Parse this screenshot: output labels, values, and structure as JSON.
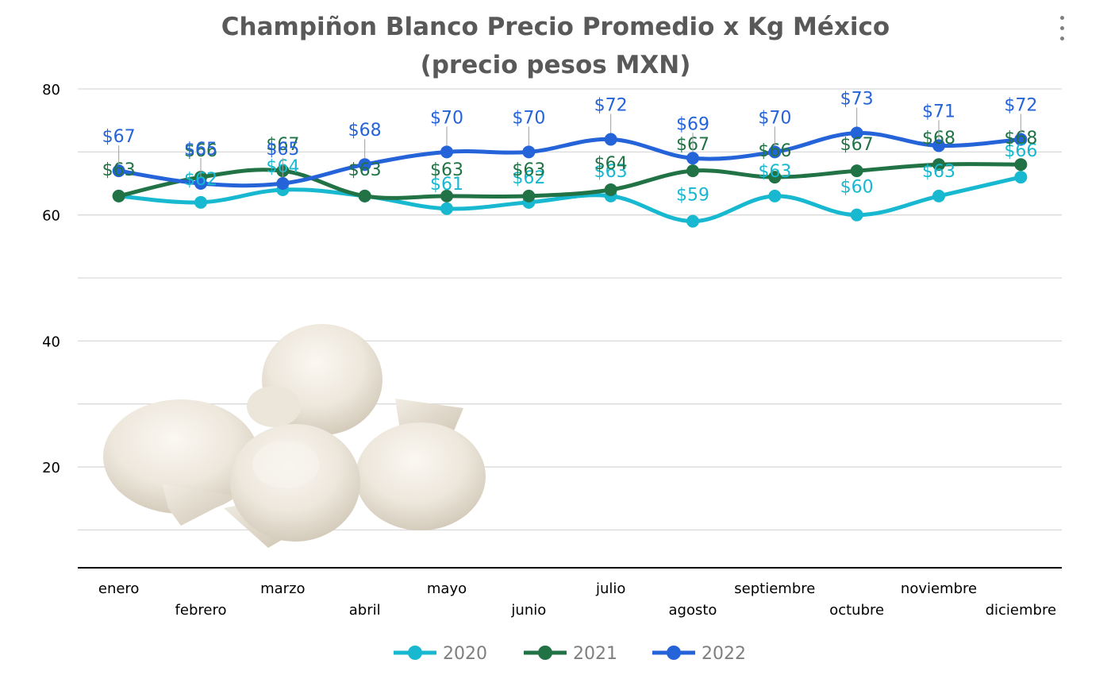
{
  "chart_data": {
    "type": "line",
    "title_line1": "Champiñon Blanco Precio Promedio x Kg México",
    "title_line2": "(precio pesos MXN)",
    "xlabel": "",
    "ylabel": "",
    "ylim": [
      4,
      80
    ],
    "yticks": [
      20,
      40,
      60,
      80
    ],
    "grid": true,
    "legend_position": "bottom",
    "categories": [
      "enero",
      "febrero",
      "marzo",
      "abril",
      "mayo",
      "junio",
      "julio",
      "agosto",
      "septiembre",
      "octubre",
      "noviembre",
      "diciembre"
    ],
    "series": [
      {
        "name": "2020",
        "color": "#17b8d0",
        "values": [
          63,
          62,
          64,
          63,
          61,
          62,
          63,
          59,
          63,
          60,
          63,
          66
        ],
        "labels": [
          "",
          "$62",
          "$64",
          "",
          "$61",
          "$62",
          "$63",
          "$59",
          "$63",
          "$60",
          "$63",
          "$66"
        ]
      },
      {
        "name": "2021",
        "color": "#217346",
        "values": [
          63,
          66,
          67,
          63,
          63,
          63,
          64,
          67,
          66,
          67,
          68,
          68
        ],
        "labels": [
          "$63",
          "$66",
          "$67",
          "$63",
          "$63",
          "$63",
          "$64",
          "$67",
          "$66",
          "$67",
          "$68",
          "$68"
        ]
      },
      {
        "name": "2022",
        "color": "#2563d9",
        "values": [
          67,
          65,
          65,
          68,
          70,
          70,
          72,
          69,
          70,
          73,
          71,
          72
        ],
        "labels": [
          "$67",
          "$65",
          "$65",
          "$68",
          "$70",
          "$70",
          "$72",
          "$69",
          "$70",
          "$73",
          "$71",
          "$72"
        ]
      }
    ],
    "decoration": "mushrooms-image",
    "axis_color": "#000000",
    "grid_color": "#d9d9d9",
    "tick_color": "#000000"
  }
}
